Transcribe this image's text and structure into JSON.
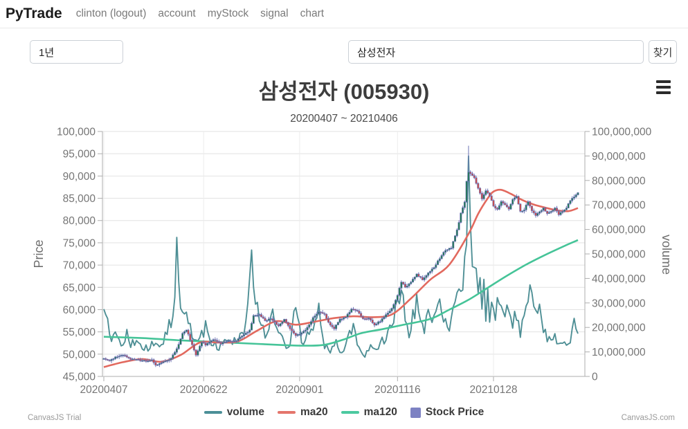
{
  "navbar": {
    "brand": "PyTrade",
    "links": [
      {
        "label": "clinton (logout)"
      },
      {
        "label": "account"
      },
      {
        "label": "myStock"
      },
      {
        "label": "signal"
      },
      {
        "label": "chart"
      }
    ]
  },
  "controls": {
    "period_value": "1년",
    "search_value": "삼성전자",
    "search_button_label": "찾기"
  },
  "watermarks": {
    "left": "CanvasJS Trial",
    "right": "CanvasJS.com"
  },
  "legend": [
    {
      "label": "volume",
      "color": "#4b8f97",
      "marker": "line"
    },
    {
      "label": "ma20",
      "color": "#e4756c",
      "marker": "line"
    },
    {
      "label": "ma120",
      "color": "#4cc9a0",
      "marker": "line"
    },
    {
      "label": "Stock Price",
      "color": "#7d82c3",
      "marker": "box"
    }
  ],
  "chart_data": {
    "type": "candlestick",
    "title": "삼성전자 (005930)",
    "subtitle": "20200407 ~ 20210406",
    "price_axis": {
      "title": "Price",
      "min": 45000,
      "max": 100000,
      "step": 5000
    },
    "volume_axis": {
      "title": "volume",
      "min": 0,
      "max": 100000000,
      "step": 10000000
    },
    "x_ticks": [
      {
        "label": "20200407",
        "day": 0
      },
      {
        "label": "20200622",
        "day": 52
      },
      {
        "label": "20200901",
        "day": 102
      },
      {
        "label": "20201116",
        "day": 153
      },
      {
        "label": "20210128",
        "day": 203
      }
    ],
    "total_days": 248,
    "peak": {
      "day": 190,
      "high": 96800,
      "volume_millions": 90
    },
    "colors": {
      "volume_line": "#44898f",
      "ma20_line": "#e2695e",
      "ma120_line": "#45c498",
      "candle_up": "#19794a",
      "candle_down": "#d4453c",
      "candle_wick": "#6c73b4",
      "grid": "#e2e2e2",
      "grid_vertical": "#ececec",
      "axis_line": "#adadad",
      "tick_label": "#757575",
      "axis_title": "#6e6e6e"
    },
    "series": {
      "close_anchors": [
        [
          0,
          49100
        ],
        [
          3,
          48500
        ],
        [
          6,
          49300
        ],
        [
          10,
          49850
        ],
        [
          14,
          48950
        ],
        [
          18,
          48700
        ],
        [
          22,
          48400
        ],
        [
          25,
          48650
        ],
        [
          27,
          47450
        ],
        [
          31,
          48250
        ],
        [
          35,
          49050
        ],
        [
          38,
          51100
        ],
        [
          41,
          54600
        ],
        [
          43,
          55500
        ],
        [
          46,
          52100
        ],
        [
          48,
          49900
        ],
        [
          51,
          52700
        ],
        [
          53,
          52000
        ],
        [
          57,
          53300
        ],
        [
          61,
          52400
        ],
        [
          65,
          52900
        ],
        [
          69,
          53000
        ],
        [
          73,
          54400
        ],
        [
          76,
          55300
        ],
        [
          78,
          58600
        ],
        [
          81,
          59000
        ],
        [
          84,
          57500
        ],
        [
          87,
          58000
        ],
        [
          91,
          56300
        ],
        [
          94,
          57900
        ],
        [
          97,
          55700
        ],
        [
          100,
          54100
        ],
        [
          103,
          54700
        ],
        [
          106,
          55900
        ],
        [
          109,
          58200
        ],
        [
          112,
          59400
        ],
        [
          115,
          58900
        ],
        [
          118,
          56500
        ],
        [
          120,
          55800
        ],
        [
          123,
          57800
        ],
        [
          126,
          58300
        ],
        [
          129,
          60100
        ],
        [
          132,
          59800
        ],
        [
          135,
          57900
        ],
        [
          138,
          58100
        ],
        [
          141,
          56600
        ],
        [
          144,
          57400
        ],
        [
          147,
          58800
        ],
        [
          150,
          60300
        ],
        [
          153,
          63200
        ],
        [
          155,
          66300
        ],
        [
          157,
          64900
        ],
        [
          160,
          66300
        ],
        [
          163,
          68000
        ],
        [
          166,
          66700
        ],
        [
          169,
          68200
        ],
        [
          172,
          69500
        ],
        [
          175,
          71500
        ],
        [
          178,
          73400
        ],
        [
          181,
          73900
        ],
        [
          184,
          77800
        ],
        [
          186,
          81600
        ],
        [
          188,
          84100
        ],
        [
          189,
          88800
        ],
        [
          190,
          91000
        ],
        [
          191,
          90600
        ],
        [
          193,
          89700
        ],
        [
          195,
          87200
        ],
        [
          197,
          85000
        ],
        [
          199,
          86700
        ],
        [
          201,
          85600
        ],
        [
          203,
          83200
        ],
        [
          205,
          82500
        ],
        [
          207,
          84400
        ],
        [
          209,
          83600
        ],
        [
          211,
          82700
        ],
        [
          213,
          84700
        ],
        [
          215,
          85300
        ],
        [
          217,
          82000
        ],
        [
          219,
          82500
        ],
        [
          221,
          84200
        ],
        [
          223,
          82200
        ],
        [
          225,
          81000
        ],
        [
          227,
          82000
        ],
        [
          229,
          82800
        ],
        [
          231,
          81600
        ],
        [
          233,
          82000
        ],
        [
          235,
          82800
        ],
        [
          237,
          81400
        ],
        [
          239,
          82000
        ],
        [
          241,
          82900
        ],
        [
          243,
          84600
        ],
        [
          245,
          85400
        ],
        [
          247,
          86200
        ]
      ],
      "ma20_anchors": [
        [
          0,
          47100
        ],
        [
          10,
          48200
        ],
        [
          20,
          48900
        ],
        [
          30,
          48300
        ],
        [
          40,
          49800
        ],
        [
          50,
          52600
        ],
        [
          60,
          52600
        ],
        [
          70,
          52900
        ],
        [
          80,
          55300
        ],
        [
          90,
          57400
        ],
        [
          100,
          56600
        ],
        [
          110,
          57300
        ],
        [
          120,
          58100
        ],
        [
          130,
          58500
        ],
        [
          140,
          58300
        ],
        [
          150,
          58900
        ],
        [
          160,
          62500
        ],
        [
          170,
          66700
        ],
        [
          180,
          70100
        ],
        [
          190,
          77000
        ],
        [
          195,
          81500
        ],
        [
          200,
          85000
        ],
        [
          203,
          86500
        ],
        [
          207,
          86900
        ],
        [
          212,
          86000
        ],
        [
          218,
          84600
        ],
        [
          224,
          83600
        ],
        [
          230,
          82900
        ],
        [
          236,
          82300
        ],
        [
          242,
          82100
        ],
        [
          247,
          82800
        ]
      ],
      "ma120_anchors": [
        [
          0,
          53900
        ],
        [
          20,
          53600
        ],
        [
          40,
          53100
        ],
        [
          60,
          52700
        ],
        [
          80,
          52300
        ],
        [
          95,
          52000
        ],
        [
          105,
          51900
        ],
        [
          115,
          52100
        ],
        [
          125,
          53300
        ],
        [
          134,
          54700
        ],
        [
          145,
          55600
        ],
        [
          155,
          56500
        ],
        [
          170,
          57900
        ],
        [
          180,
          60000
        ],
        [
          190,
          62200
        ],
        [
          200,
          64900
        ],
        [
          210,
          67600
        ],
        [
          220,
          70100
        ],
        [
          230,
          72300
        ],
        [
          240,
          74300
        ],
        [
          247,
          75600
        ]
      ],
      "volume_anchors_millions": [
        [
          0,
          30
        ],
        [
          2,
          22
        ],
        [
          4,
          16
        ],
        [
          6,
          19
        ],
        [
          8,
          14
        ],
        [
          10,
          13
        ],
        [
          12,
          17
        ],
        [
          14,
          12
        ],
        [
          17,
          16
        ],
        [
          20,
          13
        ],
        [
          23,
          11
        ],
        [
          26,
          14
        ],
        [
          29,
          12
        ],
        [
          32,
          16
        ],
        [
          36,
          24
        ],
        [
          38,
          49
        ],
        [
          40,
          30
        ],
        [
          43,
          26
        ],
        [
          46,
          18
        ],
        [
          50,
          15
        ],
        [
          53,
          20
        ],
        [
          56,
          14
        ],
        [
          60,
          12
        ],
        [
          63,
          17
        ],
        [
          66,
          13
        ],
        [
          70,
          16
        ],
        [
          74,
          20
        ],
        [
          77,
          47
        ],
        [
          79,
          30
        ],
        [
          82,
          22
        ],
        [
          85,
          15
        ],
        [
          88,
          25
        ],
        [
          91,
          17
        ],
        [
          94,
          13
        ],
        [
          97,
          11
        ],
        [
          100,
          30
        ],
        [
          103,
          14
        ],
        [
          106,
          17
        ],
        [
          109,
          21
        ],
        [
          112,
          26
        ],
        [
          115,
          12
        ],
        [
          118,
          10
        ],
        [
          121,
          14
        ],
        [
          124,
          9
        ],
        [
          127,
          15
        ],
        [
          130,
          20
        ],
        [
          133,
          11
        ],
        [
          136,
          8
        ],
        [
          139,
          13
        ],
        [
          142,
          10
        ],
        [
          145,
          14
        ],
        [
          148,
          18
        ],
        [
          151,
          25
        ],
        [
          153,
          30
        ],
        [
          155,
          34
        ],
        [
          157,
          26
        ],
        [
          159,
          18
        ],
        [
          161,
          24
        ],
        [
          163,
          30
        ],
        [
          165,
          22
        ],
        [
          167,
          18
        ],
        [
          169,
          26
        ],
        [
          171,
          20
        ],
        [
          173,
          26
        ],
        [
          175,
          32
        ],
        [
          177,
          24
        ],
        [
          179,
          18
        ],
        [
          181,
          22
        ],
        [
          183,
          30
        ],
        [
          185,
          38
        ],
        [
          187,
          33
        ],
        [
          189,
          60
        ],
        [
          190,
          90
        ],
        [
          191,
          65
        ],
        [
          192,
          48
        ],
        [
          193,
          40
        ],
        [
          194,
          50
        ],
        [
          195,
          36
        ],
        [
          196,
          42
        ],
        [
          197,
          30
        ],
        [
          198,
          36
        ],
        [
          199,
          26
        ],
        [
          200,
          32
        ],
        [
          201,
          25
        ],
        [
          202,
          30
        ],
        [
          203,
          24
        ],
        [
          205,
          29
        ],
        [
          207,
          33
        ],
        [
          209,
          25
        ],
        [
          211,
          29
        ],
        [
          213,
          22
        ],
        [
          215,
          26
        ],
        [
          217,
          18
        ],
        [
          219,
          24
        ],
        [
          221,
          30
        ],
        [
          222,
          39
        ],
        [
          223,
          30
        ],
        [
          225,
          24
        ],
        [
          227,
          27
        ],
        [
          229,
          20
        ],
        [
          231,
          16
        ],
        [
          233,
          14
        ],
        [
          235,
          16
        ],
        [
          237,
          12
        ],
        [
          239,
          15
        ],
        [
          241,
          13
        ],
        [
          243,
          12
        ],
        [
          245,
          22
        ],
        [
          247,
          18
        ]
      ]
    }
  }
}
